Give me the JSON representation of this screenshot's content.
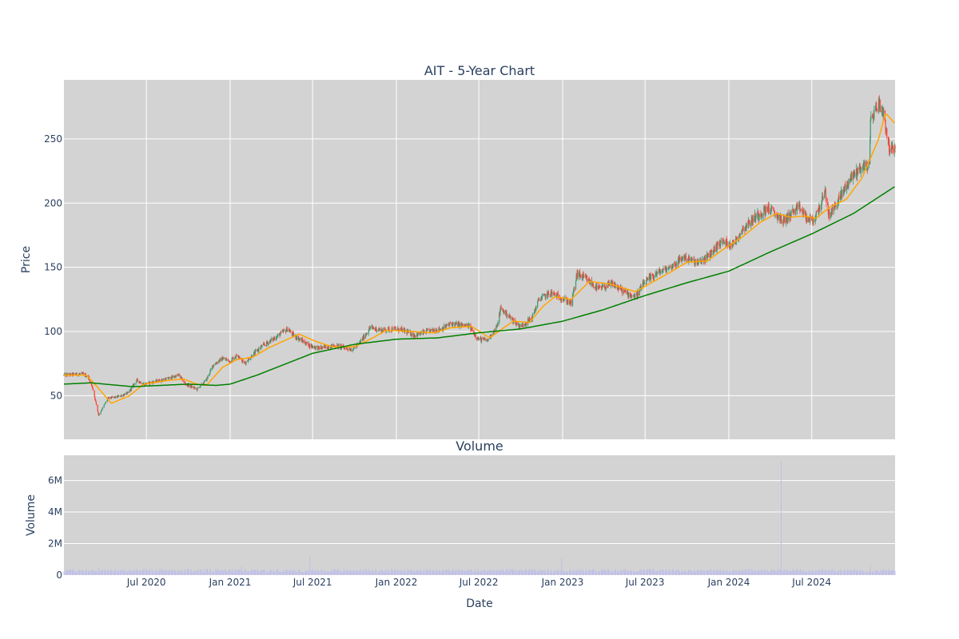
{
  "chart_data": [
    {
      "type": "candlestick",
      "title": "AIT - 5-Year Chart",
      "ylabel": "Price",
      "y_ticks": [
        50,
        100,
        150,
        200,
        250
      ],
      "ylim": [
        16,
        296
      ],
      "xlim": [
        "2020-01-02",
        "2024-12-31"
      ],
      "grid": true,
      "plot_bgcolor": "#d3d3d3",
      "increasing_color": "#3d9970",
      "decreasing_color": "#ff4136",
      "ma_short_color": "#ffa500",
      "ma_long_color": "#008000",
      "price_keypoints": [
        [
          "2020-01-02",
          66
        ],
        [
          "2020-02-10",
          67
        ],
        [
          "2020-02-24",
          65
        ],
        [
          "2020-03-05",
          56
        ],
        [
          "2020-03-18",
          35
        ],
        [
          "2020-03-23",
          38
        ],
        [
          "2020-04-08",
          48
        ],
        [
          "2020-04-28",
          49
        ],
        [
          "2020-05-22",
          52
        ],
        [
          "2020-06-10",
          62
        ],
        [
          "2020-06-26",
          59
        ],
        [
          "2020-08-15",
          63
        ],
        [
          "2020-09-10",
          66
        ],
        [
          "2020-09-25",
          59
        ],
        [
          "2020-10-20",
          55
        ],
        [
          "2020-11-09",
          62
        ],
        [
          "2020-11-25",
          74
        ],
        [
          "2020-12-15",
          79
        ],
        [
          "2020-12-31",
          77
        ],
        [
          "2021-01-18",
          82
        ],
        [
          "2021-02-01",
          75
        ],
        [
          "2021-02-20",
          82
        ],
        [
          "2021-03-10",
          88
        ],
        [
          "2021-04-01",
          93
        ],
        [
          "2021-05-07",
          102
        ],
        [
          "2021-05-20",
          97
        ],
        [
          "2021-06-25",
          89
        ],
        [
          "2021-07-15",
          87
        ],
        [
          "2021-08-20",
          89
        ],
        [
          "2021-09-25",
          86
        ],
        [
          "2021-10-10",
          90
        ],
        [
          "2021-11-05",
          103
        ],
        [
          "2021-11-28",
          101
        ],
        [
          "2021-12-25",
          102
        ],
        [
          "2022-01-15",
          101
        ],
        [
          "2022-02-10",
          97
        ],
        [
          "2022-03-10",
          100
        ],
        [
          "2022-04-10",
          102
        ],
        [
          "2022-05-01",
          106
        ],
        [
          "2022-06-10",
          104
        ],
        [
          "2022-06-30",
          94
        ],
        [
          "2022-07-20",
          93
        ],
        [
          "2022-08-10",
          104
        ],
        [
          "2022-08-18",
          118
        ],
        [
          "2022-09-10",
          110
        ],
        [
          "2022-09-30",
          104
        ],
        [
          "2022-10-25",
          110
        ],
        [
          "2022-11-10",
          125
        ],
        [
          "2022-12-05",
          130
        ],
        [
          "2022-12-31",
          126
        ],
        [
          "2023-01-20",
          122
        ],
        [
          "2023-02-02",
          145
        ],
        [
          "2023-02-25",
          140
        ],
        [
          "2023-03-20",
          133
        ],
        [
          "2023-04-20",
          137
        ],
        [
          "2023-05-20",
          130
        ],
        [
          "2023-06-10",
          127
        ],
        [
          "2023-06-30",
          138
        ],
        [
          "2023-07-25",
          145
        ],
        [
          "2023-08-25",
          150
        ],
        [
          "2023-09-25",
          158
        ],
        [
          "2023-10-25",
          153
        ],
        [
          "2023-11-15",
          158
        ],
        [
          "2023-12-15",
          170
        ],
        [
          "2024-01-10",
          168
        ],
        [
          "2024-02-01",
          180
        ],
        [
          "2024-03-01",
          190
        ],
        [
          "2024-03-28",
          196
        ],
        [
          "2024-04-30",
          186
        ],
        [
          "2024-05-20",
          193
        ],
        [
          "2024-06-05",
          196
        ],
        [
          "2024-06-20",
          188
        ],
        [
          "2024-07-05",
          186
        ],
        [
          "2024-07-31",
          208
        ],
        [
          "2024-08-08",
          190
        ],
        [
          "2024-08-25",
          200
        ],
        [
          "2024-09-25",
          220
        ],
        [
          "2024-10-18",
          228
        ],
        [
          "2024-11-05",
          230
        ],
        [
          "2024-11-07",
          265
        ],
        [
          "2024-11-25",
          278
        ],
        [
          "2024-12-06",
          270
        ],
        [
          "2024-12-18",
          243
        ],
        [
          "2024-12-31",
          240
        ]
      ],
      "ma_short_keypoints": [
        [
          "2020-01-02",
          66
        ],
        [
          "2020-02-20",
          66
        ],
        [
          "2020-03-15",
          57
        ],
        [
          "2020-04-15",
          44
        ],
        [
          "2020-05-25",
          50
        ],
        [
          "2020-06-25",
          59
        ],
        [
          "2020-08-20",
          62
        ],
        [
          "2020-09-20",
          63
        ],
        [
          "2020-10-20",
          59
        ],
        [
          "2020-11-10",
          58
        ],
        [
          "2020-12-15",
          72
        ],
        [
          "2021-01-15",
          78
        ],
        [
          "2021-02-20",
          80
        ],
        [
          "2021-03-25",
          87
        ],
        [
          "2021-05-01",
          93
        ],
        [
          "2021-06-01",
          98
        ],
        [
          "2021-07-10",
          92
        ],
        [
          "2021-08-15",
          88
        ],
        [
          "2021-10-01",
          88
        ],
        [
          "2021-11-10",
          95
        ],
        [
          "2021-12-10",
          101
        ],
        [
          "2022-02-01",
          100
        ],
        [
          "2022-03-25",
          99
        ],
        [
          "2022-05-01",
          103
        ],
        [
          "2022-06-15",
          104
        ],
        [
          "2022-07-25",
          95
        ],
        [
          "2022-08-25",
          103
        ],
        [
          "2022-09-15",
          108
        ],
        [
          "2022-10-20",
          107
        ],
        [
          "2022-11-20",
          120
        ],
        [
          "2022-12-15",
          127
        ],
        [
          "2023-01-20",
          125
        ],
        [
          "2023-03-01",
          139
        ],
        [
          "2023-04-15",
          137
        ],
        [
          "2023-06-10",
          131
        ],
        [
          "2023-07-15",
          138
        ],
        [
          "2023-08-25",
          146
        ],
        [
          "2023-10-01",
          154
        ],
        [
          "2023-11-15",
          155
        ],
        [
          "2023-12-20",
          164
        ],
        [
          "2024-02-01",
          174
        ],
        [
          "2024-03-10",
          185
        ],
        [
          "2024-04-15",
          192
        ],
        [
          "2024-05-15",
          189
        ],
        [
          "2024-06-15",
          190
        ],
        [
          "2024-07-10",
          188
        ],
        [
          "2024-08-10",
          197
        ],
        [
          "2024-09-15",
          203
        ],
        [
          "2024-10-20",
          220
        ],
        [
          "2024-11-25",
          250
        ],
        [
          "2024-12-10",
          270
        ],
        [
          "2024-12-31",
          262
        ]
      ],
      "ma_long_keypoints": [
        [
          "2020-01-02",
          59
        ],
        [
          "2020-03-01",
          60
        ],
        [
          "2020-06-01",
          57
        ],
        [
          "2020-10-01",
          59
        ],
        [
          "2020-12-01",
          58
        ],
        [
          "2021-01-01",
          59
        ],
        [
          "2021-03-01",
          66
        ],
        [
          "2021-07-01",
          83
        ],
        [
          "2021-10-01",
          90
        ],
        [
          "2022-01-01",
          94
        ],
        [
          "2022-04-01",
          95
        ],
        [
          "2022-07-01",
          99
        ],
        [
          "2022-10-01",
          102
        ],
        [
          "2023-01-01",
          108
        ],
        [
          "2023-04-01",
          117
        ],
        [
          "2023-07-01",
          128
        ],
        [
          "2023-10-01",
          138
        ],
        [
          "2024-01-01",
          147
        ],
        [
          "2024-04-01",
          162
        ],
        [
          "2024-07-01",
          176
        ],
        [
          "2024-10-01",
          192
        ],
        [
          "2024-12-31",
          213
        ]
      ]
    },
    {
      "type": "bar",
      "title": "Volume",
      "ylabel": "Volume",
      "xlabel": "Date",
      "y_ticks": [
        0,
        2000000,
        4000000,
        6000000
      ],
      "y_tick_labels": [
        "0",
        "2M",
        "4M",
        "6M"
      ],
      "ylim": [
        0,
        7600000
      ],
      "xlim": [
        "2020-01-02",
        "2024-12-31"
      ],
      "x_ticks": [
        "2020-07-01",
        "2021-01-01",
        "2021-07-01",
        "2022-01-01",
        "2022-07-01",
        "2023-01-01",
        "2023-07-01",
        "2024-01-01",
        "2024-07-01"
      ],
      "x_tick_labels": [
        "Jul 2020",
        "Jan 2021",
        "Jul 2021",
        "Jan 2022",
        "Jul 2022",
        "Jan 2023",
        "Jul 2023",
        "Jan 2024",
        "Jul 2024"
      ],
      "bar_color": "#c0c0e8",
      "baseline_volume": 260000,
      "spikes": [
        [
          "2020-03-18",
          500000
        ],
        [
          "2020-06-30",
          450000
        ],
        [
          "2021-01-25",
          550000
        ],
        [
          "2021-06-25",
          1150000
        ],
        [
          "2022-12-30",
          1100000
        ],
        [
          "2024-04-25",
          7200000
        ],
        [
          "2024-11-07",
          650000
        ]
      ]
    }
  ]
}
